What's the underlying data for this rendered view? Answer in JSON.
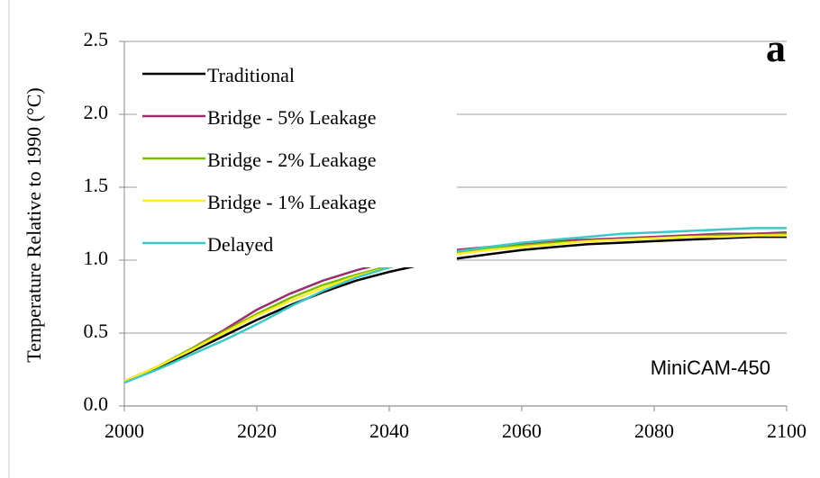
{
  "chart_data": {
    "type": "line",
    "ylabel": "Temperature Relative to 1990 (°C)",
    "annotations": [
      "a",
      "MiniCAM-450"
    ],
    "x": [
      2000,
      2005,
      2010,
      2015,
      2020,
      2025,
      2030,
      2035,
      2040,
      2045,
      2050,
      2055,
      2060,
      2065,
      2070,
      2075,
      2080,
      2085,
      2090,
      2095,
      2100
    ],
    "series": [
      {
        "name": "Traditional",
        "color": "#000000",
        "values": [
          0.17,
          0.26,
          0.37,
          0.48,
          0.59,
          0.69,
          0.78,
          0.86,
          0.92,
          0.97,
          1.01,
          1.04,
          1.07,
          1.09,
          1.11,
          1.12,
          1.13,
          1.14,
          1.15,
          1.16,
          1.16
        ]
      },
      {
        "name": "Bridge - 5% Leakage",
        "color": "#9b2d6a",
        "values": [
          0.17,
          0.27,
          0.39,
          0.52,
          0.66,
          0.77,
          0.86,
          0.93,
          0.99,
          1.04,
          1.07,
          1.09,
          1.11,
          1.13,
          1.14,
          1.15,
          1.16,
          1.17,
          1.18,
          1.18,
          1.19
        ]
      },
      {
        "name": "Bridge - 2% Leakage",
        "color": "#7cbb00",
        "values": [
          0.17,
          0.27,
          0.39,
          0.51,
          0.63,
          0.74,
          0.83,
          0.9,
          0.96,
          1.01,
          1.05,
          1.08,
          1.1,
          1.12,
          1.13,
          1.14,
          1.15,
          1.16,
          1.17,
          1.17,
          1.18
        ]
      },
      {
        "name": "Bridge - 1% Leakage",
        "color": "#ffee22",
        "values": [
          0.17,
          0.27,
          0.38,
          0.5,
          0.62,
          0.72,
          0.81,
          0.89,
          0.95,
          1.0,
          1.04,
          1.07,
          1.09,
          1.11,
          1.13,
          1.14,
          1.15,
          1.16,
          1.16,
          1.17,
          1.17
        ]
      },
      {
        "name": "Delayed",
        "color": "#3cc8c8",
        "values": [
          0.16,
          0.25,
          0.35,
          0.45,
          0.56,
          0.68,
          0.79,
          0.88,
          0.95,
          1.01,
          1.06,
          1.09,
          1.12,
          1.14,
          1.16,
          1.18,
          1.19,
          1.2,
          1.21,
          1.22,
          1.22
        ]
      }
    ],
    "xlim": [
      2000,
      2100
    ],
    "xticks": [
      2000,
      2020,
      2040,
      2060,
      2080,
      2100
    ],
    "ylim": [
      0,
      2.5
    ],
    "yticks": [
      {
        "value": 0,
        "label": "0.0"
      },
      0.5,
      {
        "value": 1,
        "label": "1.0"
      },
      1.5,
      {
        "value": 2,
        "label": "2.0"
      },
      2.5
    ],
    "grid": true,
    "legend": "upper left"
  }
}
